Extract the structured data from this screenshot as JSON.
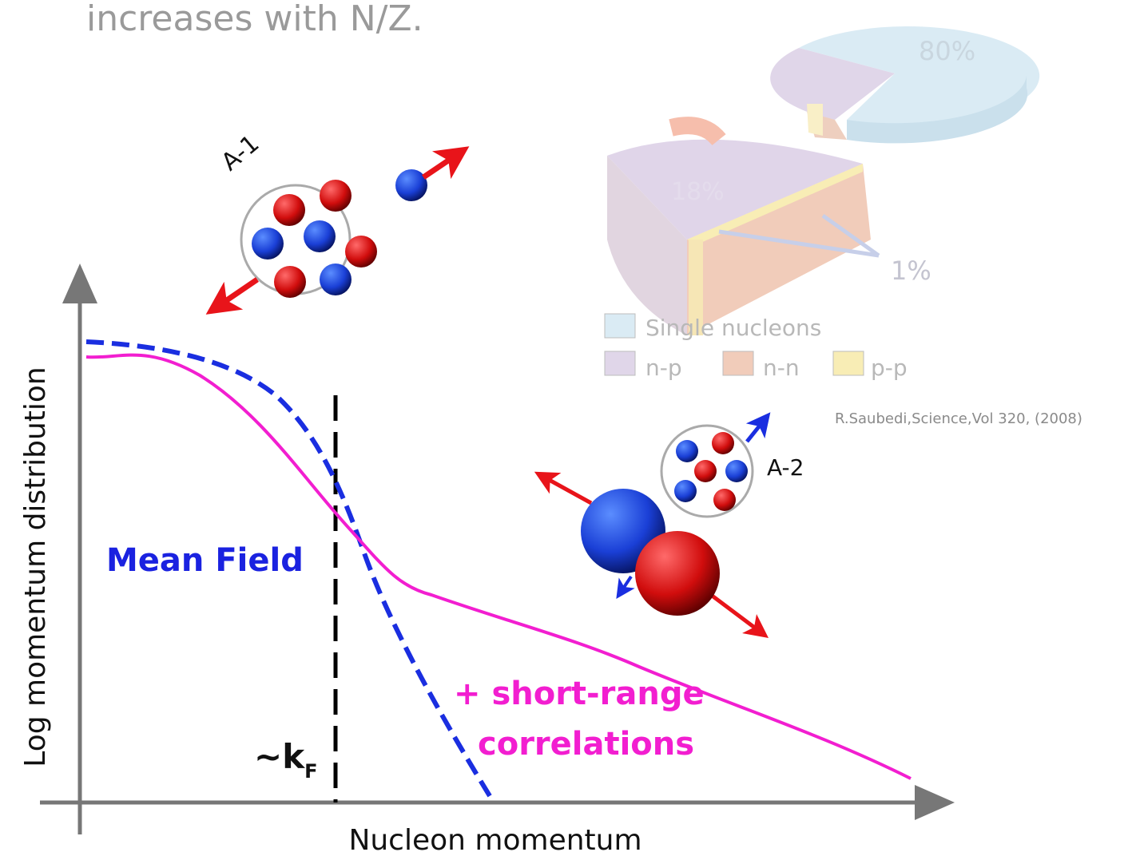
{
  "slide": {
    "heading": "increases with N/Z."
  },
  "nucleus_a1": {
    "label": "A-1"
  },
  "nucleus_a2": {
    "label": "A-2"
  },
  "pie": {
    "labels": [
      "80%",
      "18%",
      "1%"
    ],
    "legend": [
      "Single nucleons",
      "n-p",
      "n-n",
      "p-p"
    ],
    "citation": "R.Saubedi,Science,Vol 320, (2008)"
  },
  "plot": {
    "y_label": "Log momentum distribution",
    "x_label": "Nucleon momentum",
    "mean_field": "Mean Field",
    "src_line1": "+ short-range",
    "src_line2": "correlations",
    "fermi": "~k",
    "fermi_sub": "F"
  }
}
